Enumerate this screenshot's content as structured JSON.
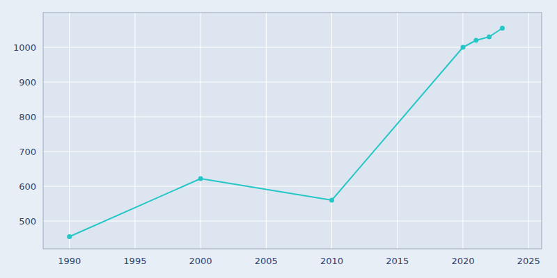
{
  "chart_data": {
    "type": "line",
    "x": [
      1990,
      2000,
      2010,
      2020,
      2021,
      2022,
      2023
    ],
    "values": [
      455,
      622,
      560,
      1000,
      1020,
      1030,
      1055
    ],
    "color": "#26C6C6",
    "marker": "circle",
    "xlim": [
      1988,
      2026
    ],
    "ylim": [
      420,
      1100
    ],
    "xticks": [
      1990,
      1995,
      2000,
      2005,
      2010,
      2015,
      2020,
      2025
    ],
    "yticks": [
      500,
      600,
      700,
      800,
      900,
      1000
    ],
    "grid": true
  }
}
